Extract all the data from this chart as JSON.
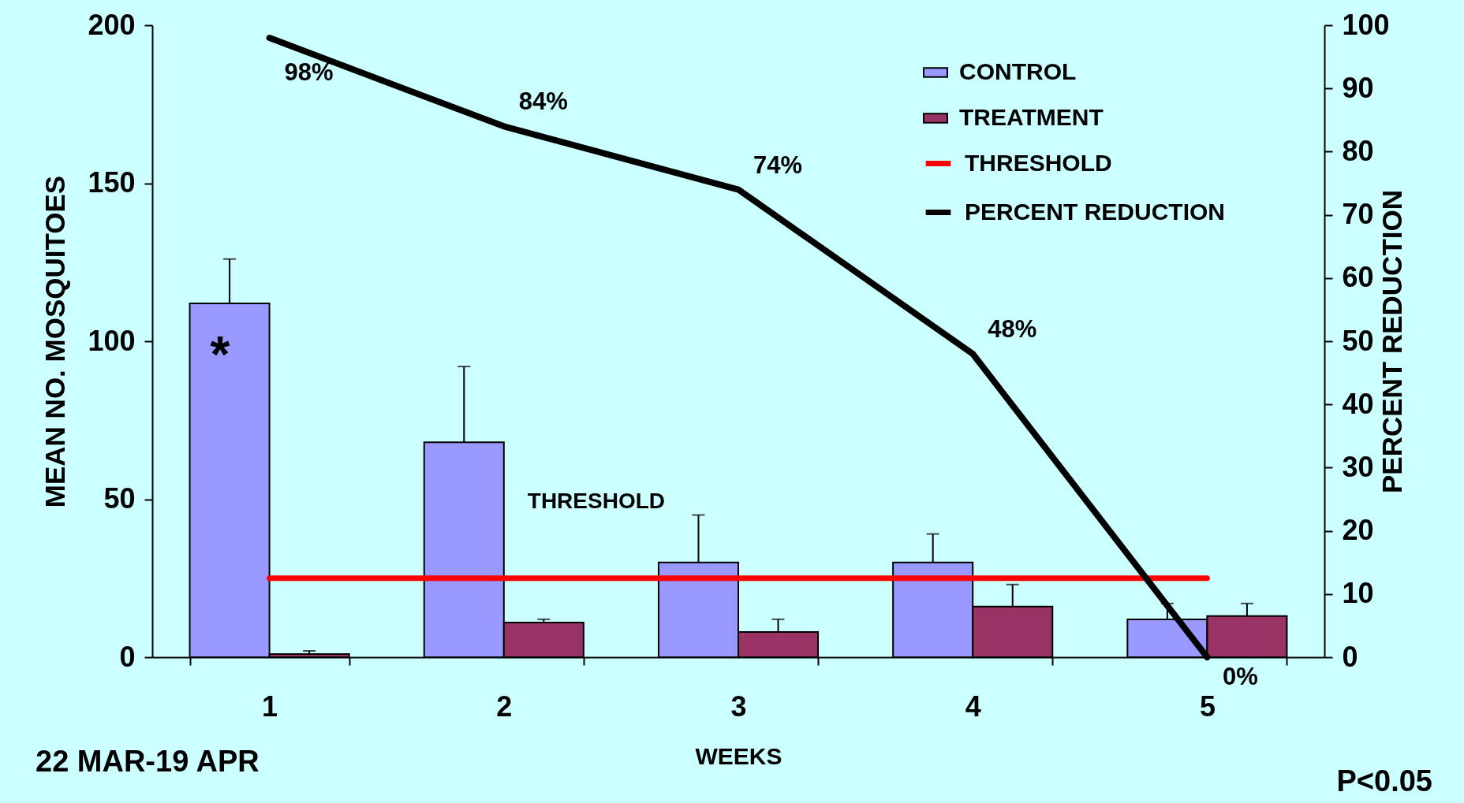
{
  "chart_data": {
    "type": "bar",
    "xlabel": "WEEKS",
    "ylabel": "MEAN NO. MOSQUITOES",
    "y2label": "PERCENT REDUCTION",
    "categories": [
      "1",
      "2",
      "3",
      "4",
      "5"
    ],
    "series": [
      {
        "name": "CONTROL",
        "color": "#9999ff",
        "values": [
          112,
          68,
          30,
          30,
          12
        ],
        "errors": [
          [
            112,
            126
          ],
          [
            68,
            92
          ],
          [
            30,
            45
          ],
          [
            30,
            39
          ],
          [
            12,
            17
          ]
        ]
      },
      {
        "name": "TREATMENT",
        "color": "#993366",
        "values": [
          1,
          11,
          8,
          16,
          13
        ],
        "errors": [
          [
            1,
            2
          ],
          [
            11,
            12
          ],
          [
            8,
            12
          ],
          [
            16,
            23
          ],
          [
            13,
            17
          ]
        ]
      },
      {
        "name": "THRESHOLD",
        "type": "line",
        "color": "#ff0000",
        "values": [
          25,
          25,
          25,
          25,
          25
        ]
      },
      {
        "name": "PERCENT REDUCTION",
        "type": "line",
        "axis": "y2",
        "color": "#000000",
        "values": [
          98,
          84,
          74,
          48,
          0
        ],
        "value_labels": [
          "98%",
          "84%",
          "74%",
          "48%",
          "0%"
        ]
      }
    ],
    "ylim": [
      0,
      200
    ],
    "yticks": [
      0,
      50,
      100,
      150,
      200
    ],
    "y2lim": [
      0,
      100
    ],
    "y2ticks": [
      0,
      10,
      20,
      30,
      40,
      50,
      60,
      70,
      80,
      90,
      100
    ],
    "annotations": [
      {
        "text": "*",
        "x": "1",
        "y": 95
      },
      "22 MAR-19 APR",
      "P<0.05"
    ],
    "legend": "top right",
    "grid": false,
    "marker": "none"
  }
}
